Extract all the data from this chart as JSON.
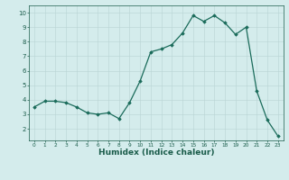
{
  "x": [
    0,
    1,
    2,
    3,
    4,
    5,
    6,
    7,
    8,
    9,
    10,
    11,
    12,
    13,
    14,
    15,
    16,
    17,
    18,
    19,
    20,
    21,
    22,
    23
  ],
  "y": [
    3.5,
    3.9,
    3.9,
    3.8,
    3.5,
    3.1,
    3.0,
    3.1,
    2.7,
    3.8,
    5.3,
    7.3,
    7.5,
    7.8,
    8.6,
    9.8,
    9.4,
    9.8,
    9.3,
    8.5,
    9.0,
    4.6,
    2.6,
    1.5
  ],
  "line_color": "#1a6b5a",
  "marker": "D",
  "markersize": 1.8,
  "linewidth": 0.9,
  "xlabel": "Humidex (Indice chaleur)",
  "xlabel_fontsize": 6.5,
  "tick_color": "#1a5c4a",
  "background_color": "#d4ecec",
  "grid_color": "#b8d4d4",
  "ylim": [
    1.2,
    10.5
  ],
  "xlim": [
    -0.5,
    23.5
  ],
  "yticks": [
    2,
    3,
    4,
    5,
    6,
    7,
    8,
    9,
    10
  ],
  "xticks": [
    0,
    1,
    2,
    3,
    4,
    5,
    6,
    7,
    8,
    9,
    10,
    11,
    12,
    13,
    14,
    15,
    16,
    17,
    18,
    19,
    20,
    21,
    22,
    23
  ]
}
